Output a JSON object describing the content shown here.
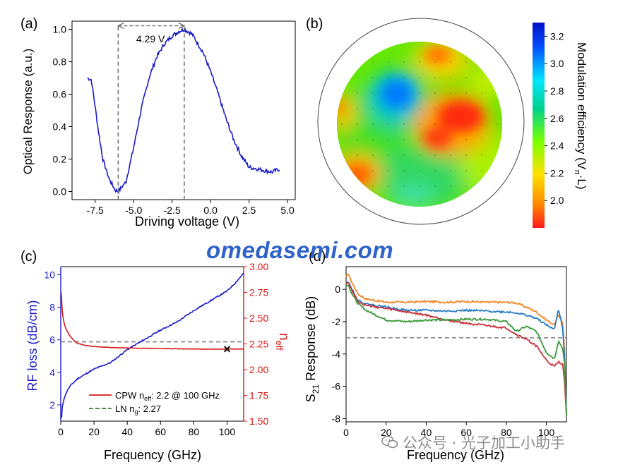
{
  "chart_data": [
    {
      "panel": "(a)",
      "type": "line",
      "xlabel": "Driving voltage (V)",
      "ylabel": "Optical Response (a.u.)",
      "xlim": [
        -9.0,
        5.5
      ],
      "ylim": [
        -0.05,
        1.05
      ],
      "xticks": [
        "-7.5",
        "-5.0",
        "-2.5",
        "0.0",
        "2.5",
        "5.0"
      ],
      "yticks": [
        "0.0",
        "0.2",
        "0.4",
        "0.6",
        "0.8",
        "1.0"
      ],
      "color": "#1a1ac8",
      "series": [
        {
          "x": [
            -8.0,
            -7.75,
            -7.55,
            -7.3,
            -7.0,
            -6.6,
            -6.2,
            -6.0,
            -5.5,
            -5.0,
            -4.5,
            -4.0,
            -3.5,
            -3.0,
            -2.5,
            -2.0,
            -1.7,
            -1.2,
            -0.5,
            0.0,
            0.5,
            1.0,
            1.5,
            2.0,
            2.5,
            3.0,
            3.5,
            4.0,
            4.5
          ],
          "y": [
            0.7,
            0.69,
            0.56,
            0.38,
            0.2,
            0.08,
            0.01,
            0.0,
            0.06,
            0.27,
            0.51,
            0.7,
            0.83,
            0.91,
            0.96,
            0.99,
            1.0,
            0.97,
            0.86,
            0.74,
            0.6,
            0.45,
            0.32,
            0.22,
            0.15,
            0.14,
            0.13,
            0.12,
            0.14
          ]
        }
      ],
      "annotations": {
        "label": "4.29 V",
        "vlines": [
          -6.0,
          -1.71
        ]
      }
    },
    {
      "panel": "(b)",
      "type": "heatmap",
      "colorbar_label": "Modulation efficiency (Vπ·L)",
      "colorbar_ticks": [
        "3.2",
        "3.0",
        "2.8",
        "2.6",
        "2.4",
        "2.2",
        "2.0"
      ],
      "colorbar_range": [
        1.8,
        3.3
      ],
      "colorscale": [
        "#ff1a1a",
        "#ff8c00",
        "#ffe000",
        "#7cff00",
        "#00d28c",
        "#00e6ff",
        "#0050ff",
        "#0010c8"
      ],
      "blobs": [
        {
          "where": "upper-left",
          "value": 3.15
        },
        {
          "where": "center-right",
          "value": 1.85
        },
        {
          "where": "top-right",
          "value": 2.0
        },
        {
          "where": "lower-left",
          "value": 2.05
        },
        {
          "where": "far-left",
          "value": 2.1
        },
        {
          "where": "bottom-center",
          "value": 2.75
        }
      ],
      "background_value": 2.5
    },
    {
      "panel": "(c)",
      "type": "line",
      "xlabel": "Frequency (GHz)",
      "ylabel_left": "RF loss (dB/cm)",
      "ylabel_right_main": "n",
      "ylabel_right_sub": "eff",
      "xlim": [
        0,
        110
      ],
      "ylim_left": [
        1,
        10.5
      ],
      "ylim_right": [
        1.5,
        3.0
      ],
      "xticks": [
        "0",
        "20",
        "40",
        "60",
        "80",
        "100"
      ],
      "yticks_left": [
        "2",
        "4",
        "6",
        "8",
        "10"
      ],
      "yticks_right": [
        "1.50",
        "1.75",
        "2.00",
        "2.25",
        "2.50",
        "2.75",
        "3.00"
      ],
      "series": [
        {
          "name": "RF loss",
          "axis": "left",
          "color": "#1a1ac8",
          "x": [
            0.5,
            1,
            2,
            4,
            6,
            10,
            15,
            20,
            30,
            40,
            50,
            60,
            70,
            80,
            90,
            100,
            105,
            110
          ],
          "y": [
            1.2,
            1.9,
            2.4,
            2.9,
            3.2,
            3.6,
            3.9,
            4.2,
            4.6,
            5.4,
            6.0,
            6.6,
            7.1,
            7.8,
            8.4,
            9.0,
            9.5,
            10.1
          ]
        },
        {
          "name": "CPW n_eff",
          "axis": "right",
          "color": "#d81818",
          "x": [
            0.3,
            1,
            2,
            3,
            5,
            8,
            10,
            15,
            20,
            30,
            40,
            60,
            80,
            100,
            110
          ],
          "y": [
            2.75,
            2.55,
            2.45,
            2.4,
            2.34,
            2.28,
            2.255,
            2.235,
            2.225,
            2.215,
            2.21,
            2.205,
            2.2,
            2.2,
            2.2
          ]
        },
        {
          "name": "LN n_g",
          "axis": "right",
          "color": "#808080",
          "dashed": true,
          "x": [
            0,
            110
          ],
          "y": [
            2.27,
            2.27
          ]
        }
      ],
      "marker": {
        "x": 100,
        "y": 2.2,
        "symbol": "×"
      },
      "legend": {
        "position": "lower-right",
        "entries": [
          {
            "pre": "CPW n",
            "sub": "eff",
            "post": ": 2.2 @ 100 GHz",
            "color": "#d81818",
            "dash": false
          },
          {
            "pre": "LN n",
            "sub": "g",
            "post": ": 2.27",
            "color": "#2e7d32",
            "dash": true
          }
        ]
      }
    },
    {
      "panel": "(d)",
      "type": "line",
      "xlabel": "Frequency (GHz)",
      "ylabel_main": "S",
      "ylabel_sub": "21",
      "ylabel_post": " Response (dB)",
      "xlim": [
        0,
        110
      ],
      "ylim": [
        -8.2,
        1.4
      ],
      "xticks": [
        "0",
        "20",
        "40",
        "60",
        "80",
        "100"
      ],
      "yticks": [
        "0",
        "-2",
        "-4",
        "-6",
        "-8"
      ],
      "reference_line": -3,
      "series": [
        {
          "color": "#f08a2c",
          "x": [
            0,
            1,
            3,
            6,
            10,
            20,
            30,
            40,
            50,
            60,
            70,
            80,
            85,
            90,
            95,
            100,
            104,
            106,
            108,
            109,
            110
          ],
          "y": [
            0.7,
            1.0,
            0.4,
            -0.3,
            -0.6,
            -0.8,
            -0.8,
            -0.75,
            -0.8,
            -0.75,
            -0.8,
            -0.8,
            -0.85,
            -1.1,
            -1.4,
            -1.9,
            -2.2,
            -1.6,
            -2.0,
            -3.5,
            -7.8
          ]
        },
        {
          "color": "#2a7bc4",
          "x": [
            0,
            1,
            3,
            6,
            10,
            20,
            30,
            40,
            50,
            60,
            70,
            80,
            85,
            90,
            95,
            100,
            104,
            106,
            108,
            109,
            110
          ],
          "y": [
            0.45,
            0.5,
            0.0,
            -0.7,
            -0.9,
            -1.1,
            -1.3,
            -1.3,
            -1.35,
            -1.3,
            -1.35,
            -1.4,
            -1.45,
            -1.6,
            -1.8,
            -2.2,
            -2.5,
            -1.2,
            -2.3,
            -4.0,
            -7.8
          ]
        },
        {
          "color": "#c8303a",
          "x": [
            0,
            1,
            3,
            6,
            10,
            20,
            30,
            40,
            50,
            60,
            70,
            80,
            85,
            90,
            95,
            100,
            104,
            106,
            108,
            109,
            110
          ],
          "y": [
            0.4,
            0.45,
            -0.1,
            -0.75,
            -1.0,
            -1.2,
            -1.4,
            -1.6,
            -1.9,
            -2.1,
            -2.25,
            -2.4,
            -2.8,
            -3.1,
            -3.5,
            -4.4,
            -4.8,
            -4.5,
            -4.6,
            -5.5,
            -7.8
          ]
        },
        {
          "color": "#3a9a3a",
          "x": [
            0,
            1,
            3,
            6,
            10,
            20,
            30,
            40,
            50,
            60,
            70,
            80,
            85,
            90,
            95,
            100,
            104,
            106,
            108,
            109,
            110
          ],
          "y": [
            0.2,
            0.3,
            -0.3,
            -0.9,
            -1.3,
            -1.9,
            -2.0,
            -1.9,
            -1.9,
            -1.85,
            -1.85,
            -2.0,
            -2.6,
            -2.3,
            -2.6,
            -3.9,
            -4.3,
            -3.2,
            -3.6,
            -4.5,
            -7.8
          ]
        }
      ]
    }
  ],
  "watermark": "omedasemi.com",
  "wechat_credit": "公众号 · 光子加工小助手"
}
